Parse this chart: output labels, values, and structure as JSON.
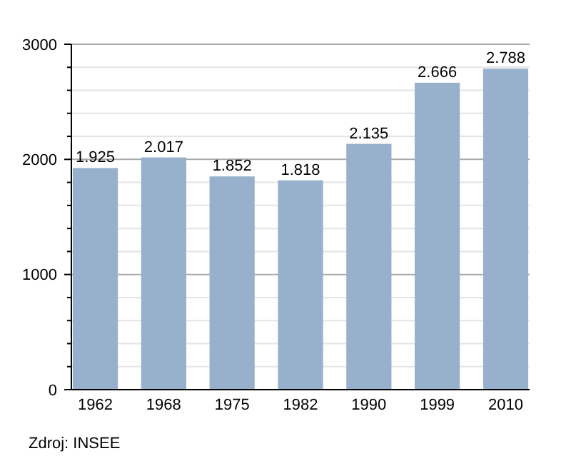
{
  "chart_data": {
    "type": "bar",
    "categories": [
      "1962",
      "1968",
      "1975",
      "1982",
      "1990",
      "1999",
      "2010"
    ],
    "values": [
      1925,
      2017,
      1852,
      1818,
      2135,
      2666,
      2788
    ],
    "value_labels": [
      "1.925",
      "2.017",
      "1.852",
      "1.818",
      "2.135",
      "2.666",
      "2.788"
    ],
    "color": "#97b1cc",
    "ylim": [
      0,
      3000
    ],
    "yticks": [
      0,
      {
        "value": 200,
        "label": null
      },
      {
        "value": 400,
        "label": null
      },
      {
        "value": 600,
        "label": null
      },
      {
        "value": 800,
        "label": null
      },
      1000,
      {
        "value": 1200,
        "label": null
      },
      {
        "value": 1400,
        "label": null
      },
      {
        "value": 1600,
        "label": null
      },
      {
        "value": 1800,
        "label": null
      },
      2000,
      {
        "value": 2200,
        "label": null
      },
      {
        "value": 2400,
        "label": null
      },
      {
        "value": 2600,
        "label": null
      },
      {
        "value": 2800,
        "label": null
      },
      3000
    ],
    "grid": true,
    "annotations": [
      "Zdroj: INSEE"
    ]
  }
}
